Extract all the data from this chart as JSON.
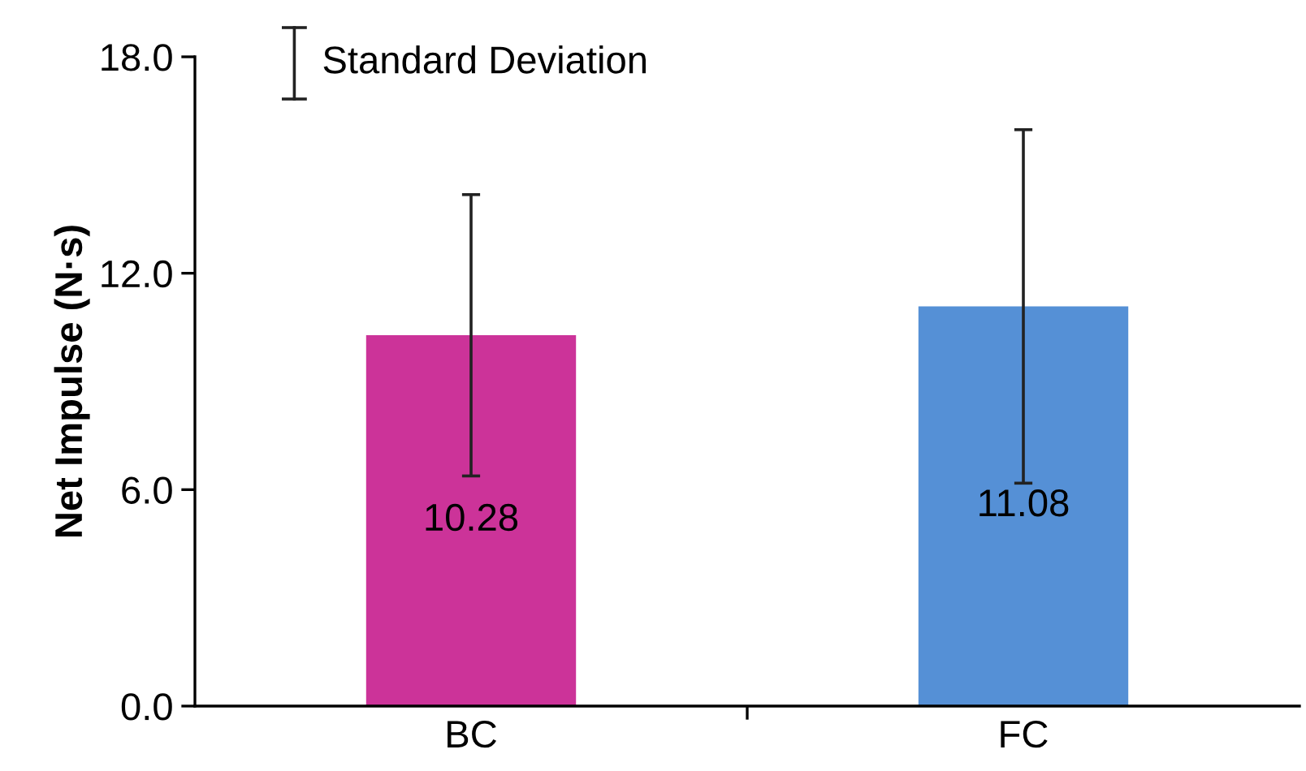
{
  "chart_data": {
    "type": "bar",
    "ylabel": "Net Impulse (N·s)",
    "categories": [
      "BC",
      "FC"
    ],
    "values": [
      10.28,
      11.08
    ],
    "colors": [
      "#cc3399",
      "#5590d6"
    ],
    "errors": [
      3.9,
      4.9
    ],
    "data_labels": true,
    "ylim": [
      0,
      18
    ],
    "yticks": [
      {
        "value": 0,
        "label": "0.0"
      },
      {
        "value": 6,
        "label": "6.0"
      },
      {
        "value": 12,
        "label": "12.0"
      },
      {
        "value": 18,
        "label": "18.0"
      }
    ],
    "grid": false,
    "legend": false,
    "annotations": [
      "Standard Deviation"
    ]
  }
}
